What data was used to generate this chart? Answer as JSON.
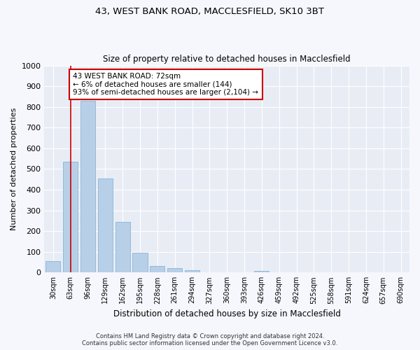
{
  "title": "43, WEST BANK ROAD, MACCLESFIELD, SK10 3BT",
  "subtitle": "Size of property relative to detached houses in Macclesfield",
  "xlabel": "Distribution of detached houses by size in Macclesfield",
  "ylabel": "Number of detached properties",
  "categories": [
    "30sqm",
    "63sqm",
    "96sqm",
    "129sqm",
    "162sqm",
    "195sqm",
    "228sqm",
    "261sqm",
    "294sqm",
    "327sqm",
    "360sqm",
    "393sqm",
    "426sqm",
    "459sqm",
    "492sqm",
    "525sqm",
    "558sqm",
    "591sqm",
    "624sqm",
    "657sqm",
    "690sqm"
  ],
  "values": [
    55,
    535,
    830,
    455,
    245,
    95,
    33,
    20,
    10,
    0,
    0,
    0,
    8,
    0,
    0,
    0,
    0,
    0,
    0,
    0,
    0
  ],
  "bar_color": "#b8cfe8",
  "bar_edge_color": "#7aadd4",
  "vline_x": 1.0,
  "vline_color": "#cc0000",
  "ylim": [
    0,
    1000
  ],
  "yticks": [
    0,
    100,
    200,
    300,
    400,
    500,
    600,
    700,
    800,
    900,
    1000
  ],
  "annotation_text": "43 WEST BANK ROAD: 72sqm\n← 6% of detached houses are smaller (144)\n93% of semi-detached houses are larger (2,104) →",
  "annotation_box_color": "#ffffff",
  "annotation_box_edge": "#cc0000",
  "footer_line1": "Contains HM Land Registry data © Crown copyright and database right 2024.",
  "footer_line2": "Contains public sector information licensed under the Open Government Licence v3.0.",
  "fig_facecolor": "#f5f7fc",
  "plot_facecolor": "#e8edf5"
}
